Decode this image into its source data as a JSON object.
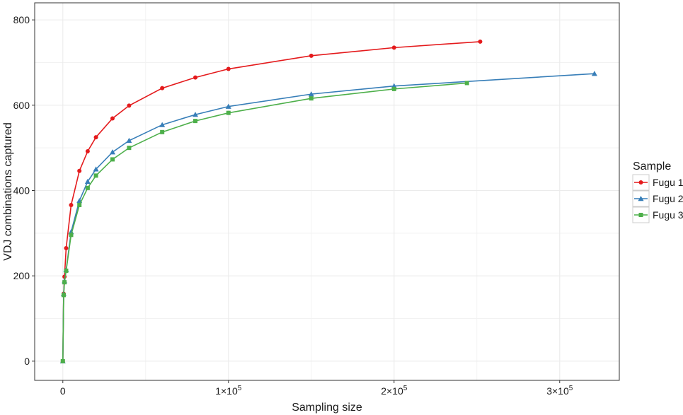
{
  "chart_data": {
    "type": "line",
    "xlabel": "Sampling size",
    "ylabel": "VDJ combinations captured",
    "xlim": [
      -17000,
      336000
    ],
    "ylim": [
      -45,
      840
    ],
    "x_ticks": [
      {
        "value": 0,
        "label": "0",
        "exp": ""
      },
      {
        "value": 100000,
        "label": "1×10",
        "exp": "5"
      },
      {
        "value": 200000,
        "label": "2×10",
        "exp": "5"
      },
      {
        "value": 300000,
        "label": "3×10",
        "exp": "5"
      }
    ],
    "y_ticks": [
      {
        "value": 0,
        "label": "0"
      },
      {
        "value": 200,
        "label": "200"
      },
      {
        "value": 400,
        "label": "400"
      },
      {
        "value": 600,
        "label": "600"
      },
      {
        "value": 800,
        "label": "800"
      }
    ],
    "grid": true,
    "legend": {
      "title": "Sample",
      "position": "right"
    },
    "series": [
      {
        "name": "Fugu 1",
        "color": "#e41a1c",
        "marker": "circle",
        "x": [
          0,
          500,
          1000,
          2000,
          5000,
          10000,
          15000,
          20000,
          30000,
          40000,
          60000,
          80000,
          100000,
          150000,
          200000,
          252000
        ],
        "y": [
          0,
          158,
          198,
          265,
          366,
          446,
          492,
          525,
          569,
          599,
          640,
          665,
          685,
          716,
          735,
          749
        ]
      },
      {
        "name": "Fugu 2",
        "color": "#377eb8",
        "marker": "triangle",
        "x": [
          0,
          500,
          1000,
          2000,
          5000,
          10000,
          15000,
          20000,
          30000,
          40000,
          60000,
          80000,
          100000,
          150000,
          200000,
          321000
        ],
        "y": [
          0,
          158,
          188,
          214,
          303,
          376,
          421,
          450,
          490,
          517,
          554,
          578,
          597,
          626,
          645,
          674
        ]
      },
      {
        "name": "Fugu 3",
        "color": "#4daf4a",
        "marker": "square",
        "x": [
          0,
          500,
          1000,
          2000,
          5000,
          10000,
          15000,
          20000,
          30000,
          40000,
          60000,
          80000,
          100000,
          150000,
          200000,
          244000
        ],
        "y": [
          0,
          155,
          185,
          212,
          296,
          366,
          406,
          435,
          473,
          500,
          537,
          563,
          582,
          616,
          638,
          652
        ]
      }
    ]
  }
}
